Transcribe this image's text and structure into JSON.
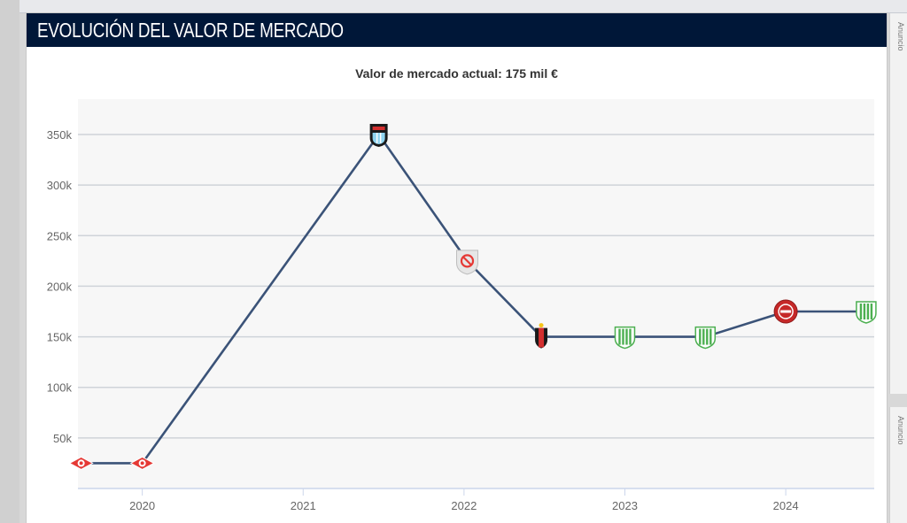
{
  "card": {
    "title": "EVOLUCIÓN DEL VALOR DE MERCADO"
  },
  "side": {
    "label": "Anuncio"
  },
  "chart_data": {
    "type": "line",
    "title": "Valor de mercado actual: 175 mil €",
    "xlabel": "",
    "ylabel": "",
    "x_ticks": [
      "2020",
      "2021",
      "2022",
      "2023",
      "2024"
    ],
    "y_ticks": [
      "50k",
      "100k",
      "150k",
      "200k",
      "250k",
      "300k",
      "350k"
    ],
    "xlim": [
      2019.6,
      2024.55
    ],
    "ylim": [
      0,
      385000
    ],
    "series": [
      {
        "name": "Valor de mercado",
        "x": [
          2019.62,
          2020.0,
          2021.47,
          2022.02,
          2022.48,
          2023.0,
          2023.5,
          2024.0,
          2024.5
        ],
        "values": [
          25000,
          25000,
          350000,
          225000,
          150000,
          150000,
          150000,
          175000,
          175000
        ],
        "markers": [
          "club-red-badge",
          "club-red-badge",
          "club-celeste-badge",
          "club-forbidden-badge",
          "club-redblack-badge",
          "club-green-badge",
          "club-green-badge",
          "club-red-round-badge",
          "club-green-badge"
        ]
      }
    ],
    "colors": {
      "line": "#3b5378",
      "grid": "#cfd3d9",
      "plot_bg": "#f7f7f7",
      "axis": "#ccd6eb",
      "tick_text": "#666666"
    }
  }
}
